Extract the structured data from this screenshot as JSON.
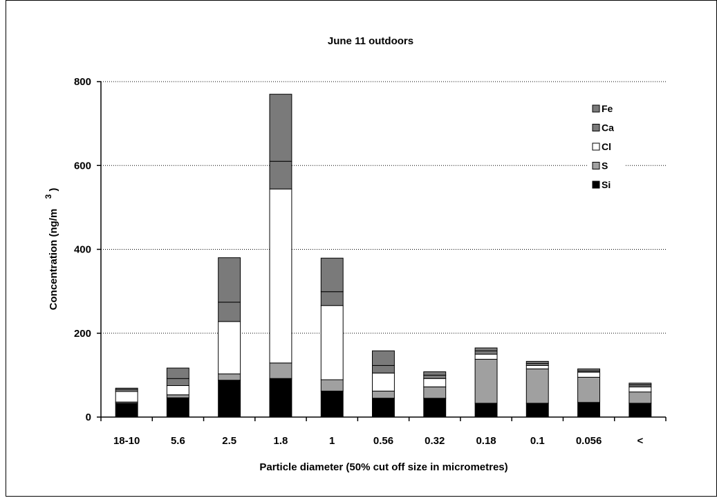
{
  "chart_data": {
    "type": "bar",
    "stacked": true,
    "title": "June 11 outdoors",
    "xlabel": "Particle diameter (50% cut off size in micrometres)",
    "ylabel": "Concentration (ng/m",
    "ylabel_superscript": "3",
    "ylabel_close": ")",
    "categories": [
      "18-10",
      "5.6",
      "2.5",
      "1.8",
      "1",
      "0.56",
      "0.32",
      "0.18",
      "0.1",
      "0.056",
      "<"
    ],
    "ylim": [
      0,
      800
    ],
    "yticks": [
      "0",
      "200",
      "400",
      "600",
      "800"
    ],
    "grid": "horizontal dotted",
    "legend_position": "top-right",
    "series": [
      {
        "name": "Si",
        "color": "#000000",
        "values": [
          33,
          46,
          88,
          92,
          62,
          45,
          45,
          33,
          33,
          35,
          33
        ]
      },
      {
        "name": "S",
        "color": "#a0a0a0",
        "values": [
          3,
          7,
          15,
          37,
          27,
          17,
          27,
          105,
          82,
          60,
          27
        ]
      },
      {
        "name": "Cl",
        "color": "#ffffff",
        "values": [
          25,
          22,
          125,
          415,
          177,
          43,
          20,
          12,
          8,
          12,
          12
        ]
      },
      {
        "name": "Ca",
        "color": "#7a7a7a",
        "values": [
          5,
          17,
          46,
          66,
          33,
          18,
          8,
          8,
          5,
          3,
          5
        ]
      },
      {
        "name": "Fe",
        "color": "#7a7a7a",
        "values": [
          3,
          25,
          106,
          160,
          80,
          35,
          8,
          7,
          5,
          5,
          4
        ]
      }
    ],
    "legend_order": [
      "Fe",
      "Ca",
      "Cl",
      "S",
      "Si"
    ]
  }
}
